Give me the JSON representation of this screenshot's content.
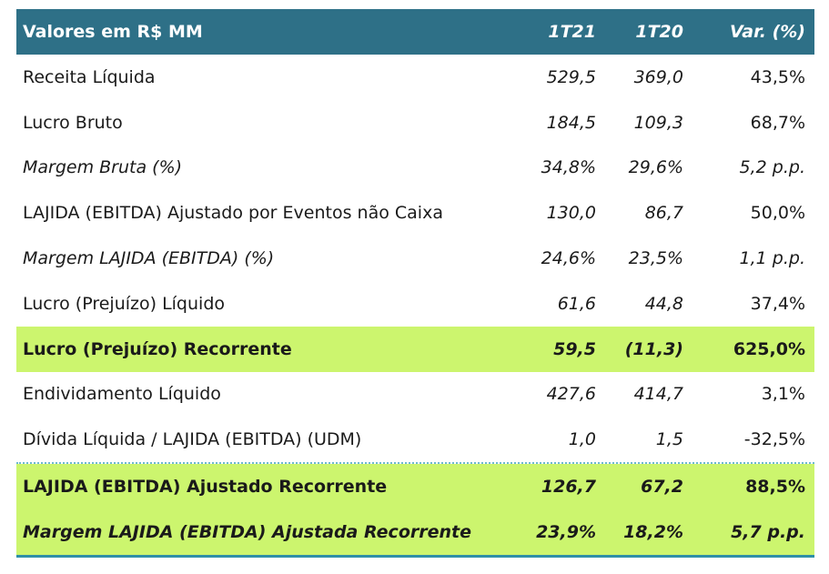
{
  "header": [
    "Valores em R$ MM",
    "1T21",
    "1T20",
    "Var. (%)"
  ],
  "rows": [
    {
      "label": "Receita Líquida",
      "v1": "529,5",
      "v2": "369,0",
      "var": "43,5%"
    },
    {
      "label": "Lucro Bruto",
      "v1": "184,5",
      "v2": "109,3",
      "var": "68,7%"
    },
    {
      "label": "Margem Bruta (%)",
      "v1": "34,8%",
      "v2": "29,6%",
      "var": "5,2 p.p."
    },
    {
      "label": "LAJIDA (EBITDA) Ajustado por Eventos não Caixa",
      "v1": "130,0",
      "v2": "86,7",
      "var": "50,0%"
    },
    {
      "label": "Margem LAJIDA (EBITDA) (%)",
      "v1": "24,6%",
      "v2": "23,5%",
      "var": "1,1 p.p."
    },
    {
      "label": "Lucro (Prejuízo) Líquido",
      "v1": "61,6",
      "v2": "44,8",
      "var": "37,4%"
    },
    {
      "label": "Lucro (Prejuízo) Recorrente",
      "v1": "59,5",
      "v2": "(11,3)",
      "var": "625,0%"
    },
    {
      "label": "Endividamento Líquido",
      "v1": "427,6",
      "v2": "414,7",
      "var": "3,1%"
    },
    {
      "label": "Dívida Líquida / LAJIDA (EBITDA) (UDM)",
      "v1": "1,0",
      "v2": "1,5",
      "var": "-32,5%"
    },
    {
      "label": "LAJIDA (EBITDA) Ajustado Recorrente",
      "v1": "126,7",
      "v2": "67,2",
      "var": "88,5%"
    },
    {
      "label": "Margem LAJIDA (EBITDA) Ajustada Recorrente",
      "v1": "23,9%",
      "v2": "18,2%",
      "var": "5,7 p.p."
    }
  ],
  "colors": {
    "header_bg": "#2e7087",
    "highlight_bg": "#ccf56e",
    "rule": "#2e8fa6"
  }
}
